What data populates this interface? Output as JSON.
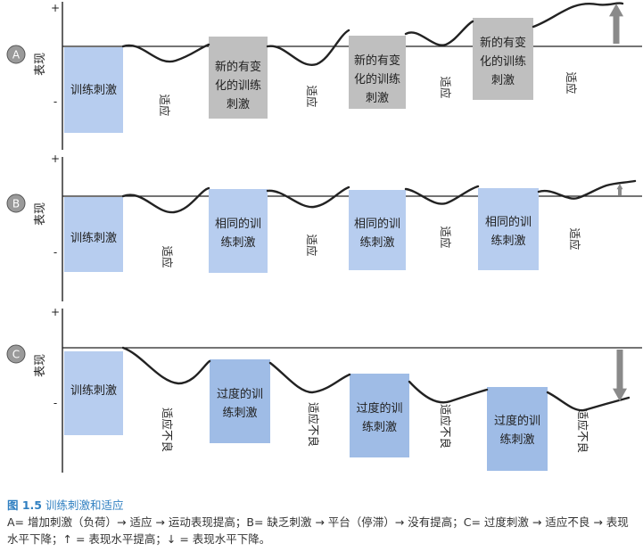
{
  "panels": [
    {
      "letter": "A",
      "axis_label": "表现",
      "plus": "+",
      "minus": "-",
      "boxes": [
        {
          "lines": [
            "训练刺激"
          ],
          "color": "#b7cdef"
        },
        {
          "lines": [
            "新的有变",
            "化的训练",
            "刺激"
          ],
          "color": "#bfbfbf"
        },
        {
          "lines": [
            "新的有变",
            "化的训练",
            "刺激"
          ],
          "color": "#bfbfbf"
        },
        {
          "lines": [
            "新的有变",
            "化的训练",
            "刺激"
          ],
          "color": "#bfbfbf"
        }
      ],
      "vertical_labels": [
        "适应",
        "适应",
        "适应",
        "适应"
      ],
      "arrow": "up"
    },
    {
      "letter": "B",
      "axis_label": "表现",
      "plus": "+",
      "minus": "-",
      "boxes": [
        {
          "lines": [
            "训练刺激"
          ],
          "color": "#b7cdef"
        },
        {
          "lines": [
            "相同的训",
            "练刺激"
          ],
          "color": "#b7cdef"
        },
        {
          "lines": [
            "相同的训",
            "练刺激"
          ],
          "color": "#b7cdef"
        },
        {
          "lines": [
            "相同的训",
            "练刺激"
          ],
          "color": "#b7cdef"
        }
      ],
      "vertical_labels": [
        "适应",
        "适应",
        "适应",
        "适应"
      ],
      "arrow": "up-small"
    },
    {
      "letter": "C",
      "axis_label": "表现",
      "plus": "+",
      "minus": "-",
      "boxes": [
        {
          "lines": [
            "训练刺激"
          ],
          "color": "#b7cdef"
        },
        {
          "lines": [
            "过度的训",
            "练刺激"
          ],
          "color": "#9fbce6"
        },
        {
          "lines": [
            "过度的训",
            "练刺激"
          ],
          "color": "#9fbce6"
        },
        {
          "lines": [
            "过度的训",
            "练刺激"
          ],
          "color": "#9fbce6"
        }
      ],
      "vertical_labels": [
        "适应不良",
        "适应不良",
        "适应不良",
        "适应不良"
      ],
      "arrow": "down"
    }
  ],
  "colors": {
    "arrow": "#8a8a8a",
    "circle": "#9a9a9a",
    "curve": "#222222",
    "accent": "#2f7fc1"
  },
  "caption": {
    "label": "图 1.5",
    "title": "训练刺激和适应",
    "body": "A= 增加刺激（负荷）→ 适应 → 运动表现提高；B= 缺乏刺激 → 平台（停滞）→ 没有提高；C= 过度刺激 → 适应不良 → 表现水平下降；↑ = 表现水平提高；↓ = 表现水平下降。"
  }
}
